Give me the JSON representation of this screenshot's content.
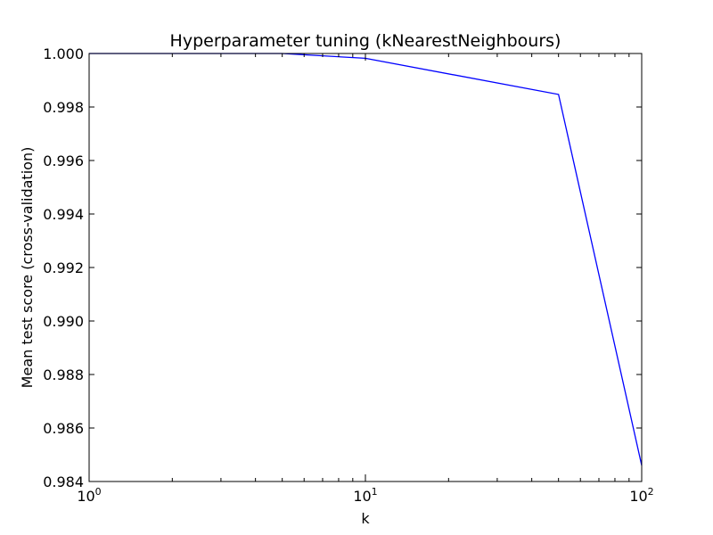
{
  "chart_data": {
    "type": "line",
    "title": "Hyperparameter tuning (kNearestNeighbours)",
    "xlabel": "k",
    "ylabel": "Mean test score (cross-validation)",
    "xscale": "log",
    "xlim": [
      1,
      100
    ],
    "ylim": [
      0.984,
      1.0
    ],
    "grid": false,
    "x_ticks": [
      {
        "value": 1,
        "base": "10",
        "exp": "0"
      },
      {
        "value": 10,
        "base": "10",
        "exp": "1"
      },
      {
        "value": 100,
        "base": "10",
        "exp": "2"
      }
    ],
    "y_ticks": [
      {
        "value": 0.984,
        "label": "0.984"
      },
      {
        "value": 0.986,
        "label": "0.986"
      },
      {
        "value": 0.988,
        "label": "0.988"
      },
      {
        "value": 0.99,
        "label": "0.990"
      },
      {
        "value": 0.992,
        "label": "0.992"
      },
      {
        "value": 0.994,
        "label": "0.994"
      },
      {
        "value": 0.996,
        "label": "0.996"
      },
      {
        "value": 0.998,
        "label": "0.998"
      },
      {
        "value": 1.0,
        "label": "1.000"
      }
    ],
    "series": [
      {
        "color": "#0000ff",
        "x": [
          1,
          5,
          10,
          50,
          100
        ],
        "y": [
          1.0,
          1.0,
          0.99982,
          0.99847,
          0.9846
        ]
      }
    ]
  }
}
